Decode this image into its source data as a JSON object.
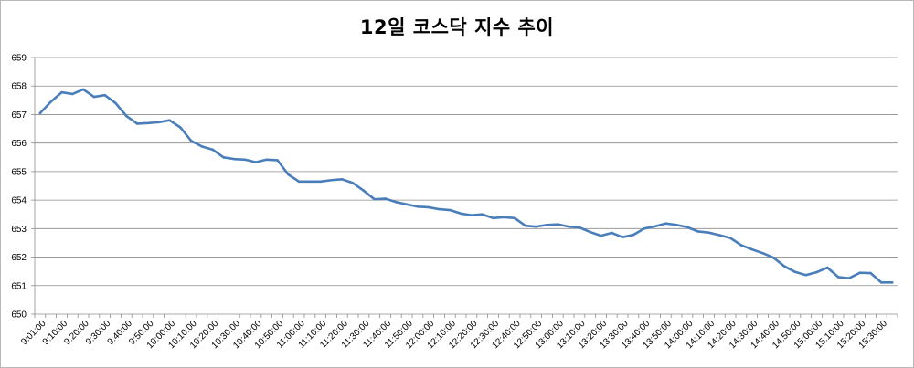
{
  "chart_data": {
    "type": "line",
    "title": "12일 코스닥 지수 추이",
    "xlabel": "",
    "ylabel": "",
    "ylim": [
      650,
      659
    ],
    "yticks": [
      650,
      651,
      652,
      653,
      654,
      655,
      656,
      657,
      658,
      659
    ],
    "grid": true,
    "legend": "none",
    "line_color": "#4a7ebb",
    "x_tick_labels": [
      "9:01:00",
      "9:10:00",
      "9:20:00",
      "9:30:00",
      "9:40:00",
      "9:50:00",
      "10:00:00",
      "10:10:00",
      "10:20:00",
      "10:30:00",
      "10:40:00",
      "10:50:00",
      "11:00:00",
      "11:10:00",
      "11:20:00",
      "11:30:00",
      "11:40:00",
      "11:50:00",
      "12:00:00",
      "12:10:00",
      "12:20:00",
      "12:30:00",
      "12:40:00",
      "12:50:00",
      "13:00:00",
      "13:10:00",
      "13:20:00",
      "13:30:00",
      "13:40:00",
      "13:50:00",
      "14:00:00",
      "14:10:00",
      "14:20:00",
      "14:30:00",
      "14:40:00",
      "14:50:00",
      "15:00:00",
      "15:10:00",
      "15:20:00",
      "15:30:00"
    ],
    "x": [
      "9:01:00",
      "9:05:00",
      "9:10:00",
      "9:15:00",
      "9:20:00",
      "9:25:00",
      "9:30:00",
      "9:35:00",
      "9:40:00",
      "9:45:00",
      "9:50:00",
      "9:55:00",
      "10:00:00",
      "10:05:00",
      "10:10:00",
      "10:15:00",
      "10:20:00",
      "10:25:00",
      "10:30:00",
      "10:35:00",
      "10:40:00",
      "10:45:00",
      "10:50:00",
      "10:55:00",
      "11:00:00",
      "11:05:00",
      "11:10:00",
      "11:15:00",
      "11:20:00",
      "11:25:00",
      "11:30:00",
      "11:35:00",
      "11:40:00",
      "11:45:00",
      "11:50:00",
      "11:55:00",
      "12:00:00",
      "12:05:00",
      "12:10:00",
      "12:15:00",
      "12:20:00",
      "12:25:00",
      "12:30:00",
      "12:35:00",
      "12:40:00",
      "12:45:00",
      "12:50:00",
      "12:55:00",
      "13:00:00",
      "13:05:00",
      "13:10:00",
      "13:15:00",
      "13:20:00",
      "13:25:00",
      "13:30:00",
      "13:35:00",
      "13:40:00",
      "13:45:00",
      "13:50:00",
      "13:55:00",
      "14:00:00",
      "14:05:00",
      "14:10:00",
      "14:15:00",
      "14:20:00",
      "14:25:00",
      "14:30:00",
      "14:35:00",
      "14:40:00",
      "14:45:00",
      "14:50:00",
      "14:55:00",
      "15:00:00",
      "15:05:00",
      "15:10:00",
      "15:15:00",
      "15:20:00",
      "15:25:00",
      "15:30:00",
      "15:35:00"
    ],
    "values": [
      657.05,
      657.45,
      657.78,
      657.72,
      657.88,
      657.62,
      657.68,
      657.4,
      656.95,
      656.68,
      656.7,
      656.73,
      656.8,
      656.55,
      656.08,
      655.88,
      655.77,
      655.5,
      655.44,
      655.42,
      655.33,
      655.42,
      655.4,
      654.9,
      654.65,
      654.65,
      654.65,
      654.7,
      654.73,
      654.6,
      654.33,
      654.03,
      654.05,
      653.93,
      653.85,
      653.77,
      653.75,
      653.68,
      653.65,
      653.53,
      653.47,
      653.5,
      653.37,
      653.4,
      653.37,
      653.1,
      653.07,
      653.13,
      653.15,
      653.07,
      653.04,
      652.88,
      652.75,
      652.85,
      652.7,
      652.78,
      653.0,
      653.08,
      653.18,
      653.13,
      653.05,
      652.9,
      652.86,
      652.77,
      652.67,
      652.42,
      652.27,
      652.14,
      651.98,
      651.68,
      651.48,
      651.37,
      651.47,
      651.63,
      651.3,
      651.26,
      651.45,
      651.44,
      651.11,
      651.11
    ]
  }
}
